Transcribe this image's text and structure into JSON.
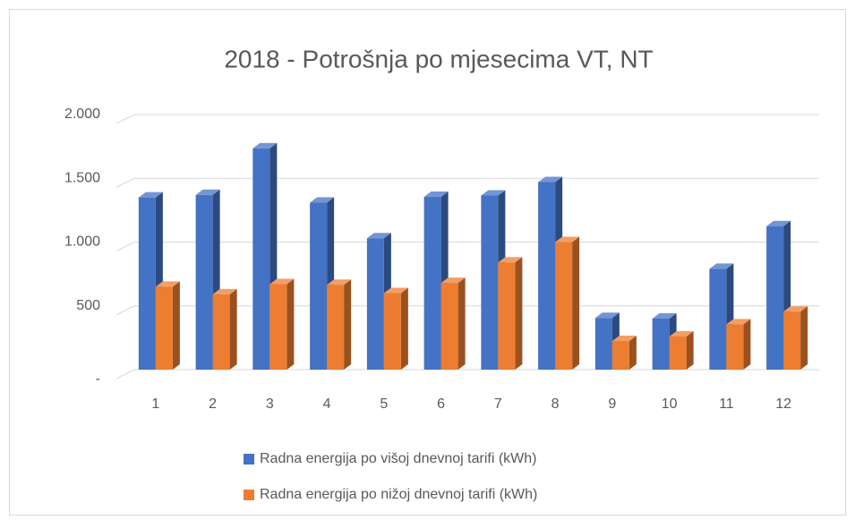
{
  "chart_data": {
    "type": "bar3d",
    "title": "2018 - Potrošnja po mjesecima VT, NT",
    "categories": [
      "1",
      "2",
      "3",
      "4",
      "5",
      "6",
      "7",
      "8",
      "9",
      "10",
      "11",
      "12"
    ],
    "series": [
      {
        "name": "Radna energija po višoj dnevnoj tarifi (kWh)",
        "color": "#4472c4",
        "values": [
          1350,
          1370,
          1735,
          1310,
          1030,
          1355,
          1365,
          1470,
          405,
          400,
          790,
          1125
        ]
      },
      {
        "name": "Radna energija po nižoj dnevnoj tarifi (kWh)",
        "color": "#ed7d31",
        "values": [
          650,
          590,
          670,
          665,
          600,
          680,
          840,
          1000,
          225,
          260,
          355,
          455
        ]
      }
    ],
    "ylim": [
      0,
      2000
    ],
    "yticks": [
      {
        "value": 0,
        "label": "-"
      },
      500,
      {
        "value": 1000,
        "label": "1.000"
      },
      {
        "value": 1500,
        "label": "1.500"
      },
      {
        "value": 2000,
        "label": "2.000"
      }
    ],
    "grid": true,
    "legend": "bottom"
  }
}
